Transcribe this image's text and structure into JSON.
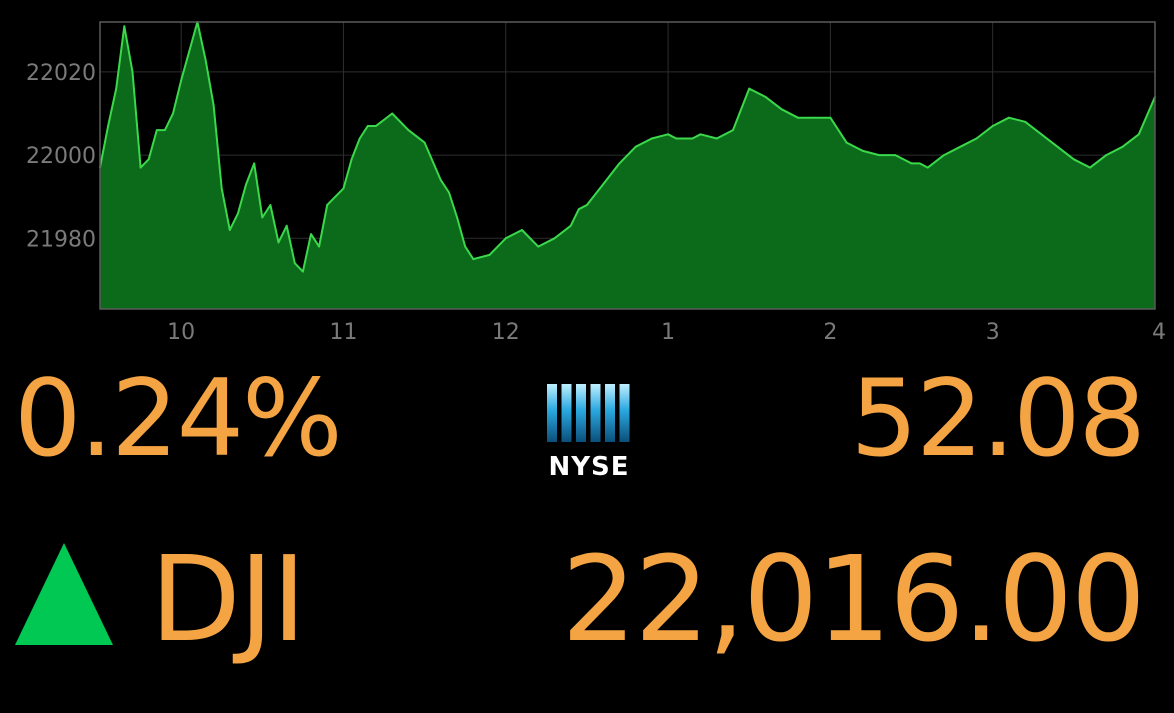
{
  "colors": {
    "background": "#000000",
    "fill": "#0b6b1a",
    "line": "#3bd84b",
    "text": "#f5a443",
    "axis_text": "#7a7a7a",
    "grid": "#2e2e2e",
    "up_arrow": "#00c853"
  },
  "quote": {
    "percent_change": "0.24%",
    "point_change": "52.08",
    "symbol": "DJI",
    "price": "22,016.00",
    "direction": "up",
    "arrow_icon": "triangle-up-icon"
  },
  "exchange": {
    "logo_text": "NYSE",
    "logo_icon": "nyse-bars-icon"
  },
  "chart_data": {
    "type": "area",
    "title": "",
    "xlabel": "",
    "ylabel": "",
    "xlim": [
      9.5,
      16
    ],
    "ylim": [
      21963,
      22032
    ],
    "grid": true,
    "x_ticks": [
      10,
      11,
      12,
      13,
      14,
      15,
      16
    ],
    "x_tick_labels": [
      "10",
      "11",
      "12",
      "1",
      "2",
      "3",
      "4"
    ],
    "y_ticks": [
      21980,
      22000,
      22020
    ],
    "y_tick_labels": [
      "21980",
      "22000",
      "22020"
    ],
    "series": [
      {
        "x": [
          9.5,
          9.55,
          9.6,
          9.65,
          9.7,
          9.75,
          9.8,
          9.85,
          9.9,
          9.95,
          10.0,
          10.05,
          10.1,
          10.15,
          10.2,
          10.25,
          10.3,
          10.35,
          10.4,
          10.45,
          10.5,
          10.55,
          10.6,
          10.65,
          10.7,
          10.75,
          10.8,
          10.85,
          10.9,
          10.95,
          11.0,
          11.05,
          11.1,
          11.15,
          11.2,
          11.3,
          11.4,
          11.5,
          11.6,
          11.65,
          11.7,
          11.75,
          11.8,
          11.9,
          12.0,
          12.1,
          12.2,
          12.3,
          12.4,
          12.45,
          12.5,
          12.6,
          12.7,
          12.8,
          12.9,
          13.0,
          13.05,
          13.1,
          13.15,
          13.2,
          13.3,
          13.4,
          13.5,
          13.6,
          13.7,
          13.8,
          13.9,
          14.0,
          14.1,
          14.2,
          14.3,
          14.4,
          14.5,
          14.55,
          14.6,
          14.7,
          14.8,
          14.9,
          15.0,
          15.1,
          15.2,
          15.3,
          15.4,
          15.5,
          15.6,
          15.7,
          15.8,
          15.9,
          16.0
        ],
        "values": [
          21997,
          22007,
          22016,
          22031,
          22020,
          21997,
          21999,
          22006,
          22006,
          22010,
          22018,
          22025,
          22032,
          22023,
          22012,
          21992,
          21982,
          21986,
          21993,
          21998,
          21985,
          21988,
          21979,
          21983,
          21974,
          21972,
          21981,
          21978,
          21988,
          21990,
          21992,
          21999,
          22004,
          22007,
          22007,
          22010,
          22006,
          22003,
          21994,
          21991,
          21985,
          21978,
          21975,
          21976,
          21980,
          21982,
          21978,
          21980,
          21983,
          21987,
          21988,
          21993,
          21998,
          22002,
          22004,
          22005,
          22004,
          22004,
          22004,
          22005,
          22004,
          22006,
          22016,
          22014,
          22011,
          22009,
          22009,
          22009,
          22003,
          22001,
          22000,
          22000,
          21998,
          21998,
          21997,
          22000,
          22002,
          22004,
          22007,
          22009,
          22008,
          22005,
          22002,
          21999,
          21997,
          22000,
          22002,
          22005,
          22014
        ]
      }
    ]
  }
}
